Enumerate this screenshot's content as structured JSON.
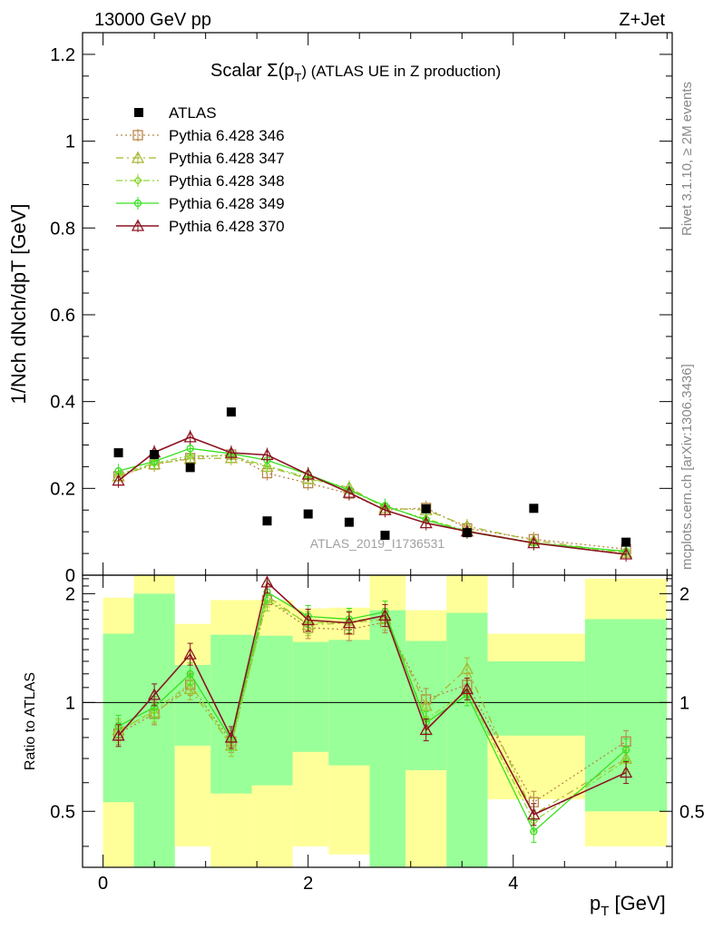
{
  "header": {
    "left": "13000 GeV pp",
    "right": "Z+Jet"
  },
  "side_labels": {
    "rivet": "Rivet 3.1.10, ≥ 2M events",
    "mcplots": "mcplots.cern.ch [arXiv:1306.3436]"
  },
  "watermark": "ATLAS_2019_I1736531",
  "chart_data": {
    "type": "scatter",
    "title": "Scalar Σ(pT) (ATLAS UE in Z production)",
    "title_parts": {
      "pre": "Scalar Σ(p",
      "sub": "T",
      "post": ") (ATLAS UE in Z production)"
    },
    "xlabel": "pT [GeV]",
    "xlabel_parts": {
      "main": "p",
      "sub": "T",
      "post": " [GeV]"
    },
    "ylabel": "1/Nch dNch/dpT [GeV]",
    "ratio_ylabel": "Ratio to ATLAS",
    "xlim": [
      -0.2,
      5.55
    ],
    "ylim": [
      0,
      1.25
    ],
    "ratio_ylim": [
      0.35,
      2.25
    ],
    "xticks": [
      "0",
      "2",
      "4"
    ],
    "xtick_values": [
      0,
      2,
      4
    ],
    "yticks": [
      "0",
      "0.2",
      "0.4",
      "0.6",
      "0.8",
      "1",
      "1.2"
    ],
    "ytick_values": [
      0,
      0.2,
      0.4,
      0.6,
      0.8,
      1.0,
      1.2
    ],
    "ratio_yticks": [
      "0.5",
      "1",
      "2"
    ],
    "ratio_ytick_values": [
      0.5,
      1,
      2
    ],
    "legend_position": "top-left",
    "x": [
      0.15,
      0.5,
      0.85,
      1.25,
      1.6,
      2.0,
      2.4,
      2.75,
      3.15,
      3.55,
      4.2,
      5.1
    ],
    "bin_edges": [
      0.0,
      0.3,
      0.7,
      1.05,
      1.45,
      1.85,
      2.2,
      2.6,
      2.95,
      3.35,
      3.75,
      4.7,
      5.5
    ],
    "data": {
      "name": "ATLAS",
      "values": [
        0.282,
        0.278,
        0.248,
        0.376,
        0.125,
        0.141,
        0.122,
        0.092,
        0.153,
        0.098,
        0.154,
        0.076
      ],
      "band_stat": [
        [
          0.53,
          1.55
        ],
        [
          0.28,
          2.0
        ],
        [
          0.76,
          1.27
        ],
        [
          0.56,
          1.54
        ],
        [
          0.59,
          1.53
        ],
        [
          0.73,
          1.47
        ],
        [
          0.67,
          1.49
        ],
        [
          0.35,
          1.8
        ],
        [
          0.65,
          1.48
        ],
        [
          0.23,
          1.77
        ],
        [
          0.81,
          1.3
        ],
        [
          0.5,
          1.7
        ]
      ],
      "band_total": [
        [
          0.3,
          1.95
        ],
        [
          0.2,
          2.5
        ],
        [
          0.4,
          1.65
        ],
        [
          0.3,
          1.92
        ],
        [
          0.3,
          1.92
        ],
        [
          0.4,
          1.82
        ],
        [
          0.38,
          1.83
        ],
        [
          0.2,
          2.5
        ],
        [
          0.3,
          1.8
        ],
        [
          0.2,
          2.5
        ],
        [
          0.54,
          1.55
        ],
        [
          0.4,
          2.2
        ]
      ]
    },
    "series": [
      {
        "name": "Pythia 6.428 346",
        "color": "#b8864a",
        "marker": "square",
        "dash": "2,3",
        "values": [
          0.228,
          0.255,
          0.27,
          0.278,
          0.235,
          0.212,
          0.188,
          0.15,
          0.155,
          0.108,
          0.083,
          0.06
        ],
        "ratio": [
          0.82,
          0.93,
          1.12,
          0.78,
          1.92,
          1.61,
          1.59,
          1.67,
          1.02,
          1.12,
          0.53,
          0.78
        ]
      },
      {
        "name": "Pythia 6.428 347",
        "color": "#a8b832",
        "marker": "triangle",
        "dash": "8,4,2,4",
        "values": [
          0.228,
          0.256,
          0.268,
          0.27,
          0.25,
          0.222,
          0.202,
          0.155,
          0.15,
          0.113,
          0.08,
          0.052
        ],
        "ratio": [
          0.84,
          0.94,
          1.09,
          0.76,
          1.97,
          1.64,
          1.66,
          1.7,
          0.98,
          1.24,
          0.49,
          0.7
        ]
      },
      {
        "name": "Pythia 6.428 348",
        "color": "#90d838",
        "marker": "diamond",
        "dash": "7,3,2,3",
        "values": [
          0.232,
          0.258,
          0.275,
          0.275,
          0.252,
          0.225,
          0.196,
          0.158,
          0.13,
          0.102,
          0.075,
          0.05
        ],
        "ratio": [
          0.83,
          0.95,
          1.13,
          0.76,
          1.92,
          1.66,
          1.67,
          1.74,
          0.9,
          1.07,
          0.47,
          0.69
        ]
      },
      {
        "name": "Pythia 6.428 349",
        "color": "#38e020",
        "marker": "circle",
        "dash": "",
        "values": [
          0.24,
          0.262,
          0.292,
          0.28,
          0.265,
          0.232,
          0.196,
          0.16,
          0.127,
          0.1,
          0.074,
          0.055
        ],
        "ratio": [
          0.86,
          0.97,
          1.2,
          0.79,
          2.02,
          1.73,
          1.7,
          1.78,
          0.88,
          1.05,
          0.44,
          0.74
        ]
      },
      {
        "name": "Pythia 6.428 370",
        "color": "#8c1422",
        "marker": "triangle",
        "dash": "",
        "values": [
          0.218,
          0.283,
          0.318,
          0.282,
          0.277,
          0.232,
          0.19,
          0.15,
          0.12,
          0.101,
          0.074,
          0.048
        ],
        "ratio": [
          0.81,
          1.05,
          1.36,
          0.8,
          2.15,
          1.69,
          1.66,
          1.74,
          0.84,
          1.09,
          0.49,
          0.64
        ]
      }
    ]
  }
}
